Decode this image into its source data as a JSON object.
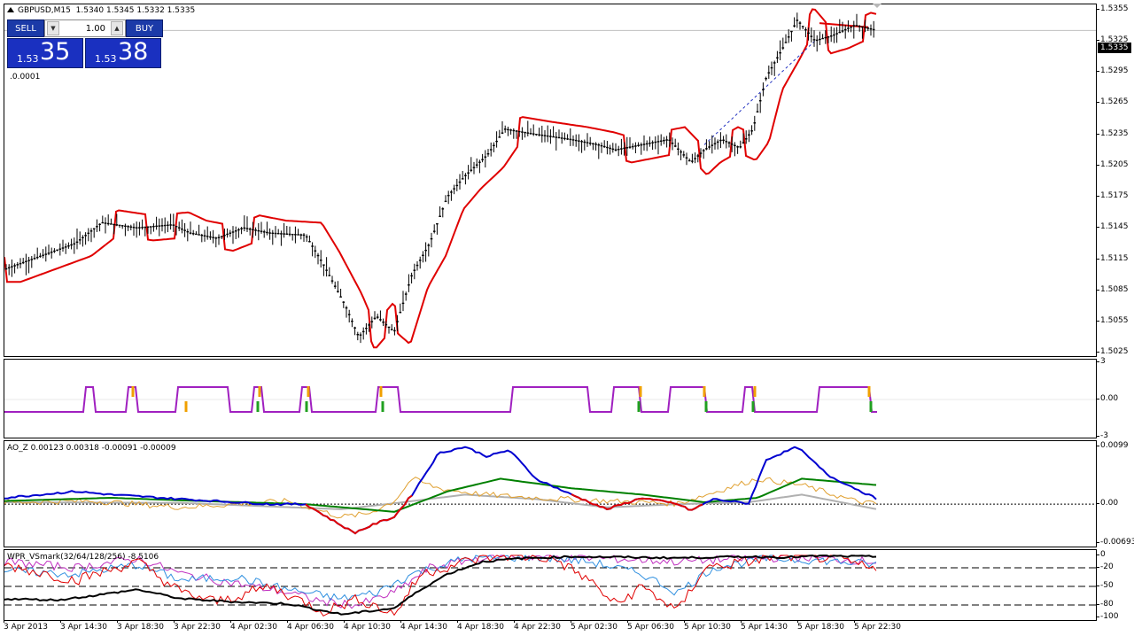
{
  "chart_header": {
    "symbol": "GBPUSD,M15",
    "ohlc": "1.5340 1.5345 1.5332 1.5335"
  },
  "one_click": {
    "sell_label": "SELL",
    "buy_label": "BUY",
    "lot": "1.00",
    "sell_prefix": "1.53",
    "sell_big": "35",
    "buy_prefix": "1.53",
    "buy_big": "38",
    "spread_text": ".0.0001"
  },
  "current_price_tag": "1.5335",
  "price_axis": [
    "1.5355",
    "1.5325",
    "1.5295",
    "1.5265",
    "1.5235",
    "1.5205",
    "1.5175",
    "1.5145",
    "1.5115",
    "1.5085",
    "1.5055",
    "1.5025"
  ],
  "signal_axis": [
    "3",
    "0.00",
    "-3"
  ],
  "ao_panel": {
    "label": "AO_Z 0.00123 0.00318 -0.00091 -0.00009",
    "axis": [
      "0.0099",
      "0.00",
      "-0.00693"
    ]
  },
  "wpr_panel": {
    "label": "WPR_VSmark(32/64/128/256) -8.5106",
    "axis": [
      "0",
      "-20",
      "-50",
      "-80",
      "-100"
    ]
  },
  "time_axis": [
    "3 Apr 2013",
    "3 Apr 14:30",
    "3 Apr 18:30",
    "3 Apr 22:30",
    "4 Apr 02:30",
    "4 Apr 06:30",
    "4 Apr 10:30",
    "4 Apr 14:30",
    "4 Apr 18:30",
    "4 Apr 22:30",
    "5 Apr 02:30",
    "5 Apr 06:30",
    "5 Apr 10:30",
    "5 Apr 14:30",
    "5 Apr 18:30",
    "5 Apr 22:30"
  ],
  "colors": {
    "candles": "#000000",
    "envelope": "#e00000",
    "signal": "#a020c0",
    "ao_fast": "#0000d0",
    "ao_slow": "#008000",
    "ao_trend": "#800000",
    "ao_neg": "#e00000",
    "ao_raw": "#e0a030",
    "ao_smooth": "#b0b0b0",
    "wpr_main": "#000000",
    "wpr_red": "#e00000",
    "wpr_blue": "#3090e0",
    "wpr_purple": "#c030c0"
  },
  "chart_data": {
    "type": "candlestick",
    "symbol": "GBPUSD",
    "timeframe": "M15",
    "ylim": [
      1.502,
      1.536
    ],
    "close_path": [
      [
        0,
        1.5105
      ],
      [
        80,
        1.513
      ],
      [
        110,
        1.515
      ],
      [
        150,
        1.5145
      ],
      [
        190,
        1.5148
      ],
      [
        210,
        1.514
      ],
      [
        240,
        1.5135
      ],
      [
        270,
        1.5145
      ],
      [
        300,
        1.514
      ],
      [
        340,
        1.5138
      ],
      [
        360,
        1.511
      ],
      [
        385,
        1.507
      ],
      [
        400,
        1.504
      ],
      [
        420,
        1.506
      ],
      [
        440,
        1.5045
      ],
      [
        460,
        1.51
      ],
      [
        480,
        1.513
      ],
      [
        500,
        1.5175
      ],
      [
        520,
        1.5195
      ],
      [
        545,
        1.5215
      ],
      [
        565,
        1.524
      ],
      [
        600,
        1.5235
      ],
      [
        640,
        1.523
      ],
      [
        670,
        1.5225
      ],
      [
        690,
        1.522
      ],
      [
        720,
        1.5225
      ],
      [
        750,
        1.523
      ],
      [
        775,
        1.5208
      ],
      [
        790,
        1.522
      ],
      [
        810,
        1.523
      ],
      [
        830,
        1.5222
      ],
      [
        845,
        1.524
      ],
      [
        860,
        1.529
      ],
      [
        880,
        1.532
      ],
      [
        895,
        1.5345
      ],
      [
        915,
        1.5325
      ],
      [
        935,
        1.533
      ],
      [
        960,
        1.534
      ],
      [
        985,
        1.5335
      ]
    ],
    "upper_envelope_tail": [
      [
        920,
        1.5342
      ],
      [
        975,
        1.5338
      ]
    ],
    "last_price": 1.5335
  }
}
